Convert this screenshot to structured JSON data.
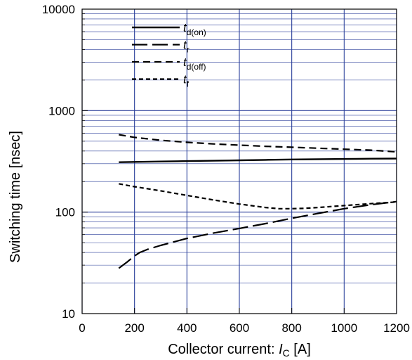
{
  "chart_data": {
    "type": "line",
    "title": "",
    "xlabel": {
      "prefix": "Collector current: ",
      "symbol": "I",
      "subscript": "C",
      "suffix": " [A]"
    },
    "ylabel": "Switching time  [nsec]",
    "xlim": [
      0,
      1200
    ],
    "ylim": [
      10,
      10000
    ],
    "yscale": "log",
    "x_ticks": [
      0,
      200,
      400,
      600,
      800,
      1000,
      1200
    ],
    "y_ticks": [
      10,
      100,
      1000,
      10000
    ],
    "x_tick_labels": [
      "0",
      "200",
      "400",
      "600",
      "800",
      "1000",
      "1200"
    ],
    "y_tick_labels": [
      "10",
      "100",
      "1000",
      "10000"
    ],
    "grid": true,
    "legend_position": "top-left",
    "colors": {
      "grid": "#2a3f9a",
      "series": "#000000",
      "background": "#ffffff"
    },
    "series": [
      {
        "name": "t_d(on)",
        "label_symbol": "t",
        "label_subscript": "d(on)",
        "style": "solid",
        "x": [
          140,
          200,
          300,
          400,
          500,
          600,
          700,
          800,
          900,
          1000,
          1100,
          1200
        ],
        "y": [
          310,
          312,
          315,
          318,
          321,
          324,
          327,
          330,
          332,
          334,
          336,
          337
        ]
      },
      {
        "name": "t_r",
        "label_symbol": "t",
        "label_subscript": "r",
        "style": "long-dash",
        "x": [
          140,
          170,
          200,
          220,
          250,
          300,
          400,
          500,
          600,
          700,
          800,
          900,
          1000,
          1100,
          1200
        ],
        "y": [
          28,
          32,
          37,
          40,
          43,
          47,
          55,
          62,
          69,
          77,
          87,
          97,
          108,
          118,
          127
        ]
      },
      {
        "name": "t_d(off)",
        "label_symbol": "t",
        "label_subscript": "d(off)",
        "style": "dash",
        "x": [
          140,
          200,
          300,
          400,
          500,
          600,
          700,
          800,
          900,
          1000,
          1100,
          1200
        ],
        "y": [
          580,
          545,
          510,
          487,
          470,
          457,
          445,
          436,
          426,
          417,
          408,
          392
        ]
      },
      {
        "name": "t_f",
        "label_symbol": "t",
        "label_subscript": "f",
        "style": "short-dash",
        "x": [
          140,
          200,
          300,
          400,
          500,
          600,
          700,
          750,
          800,
          850,
          900,
          1000,
          1100,
          1200
        ],
        "y": [
          190,
          178,
          162,
          146,
          132,
          120,
          111,
          108,
          108,
          109,
          111,
          116,
          121,
          126
        ]
      }
    ]
  }
}
